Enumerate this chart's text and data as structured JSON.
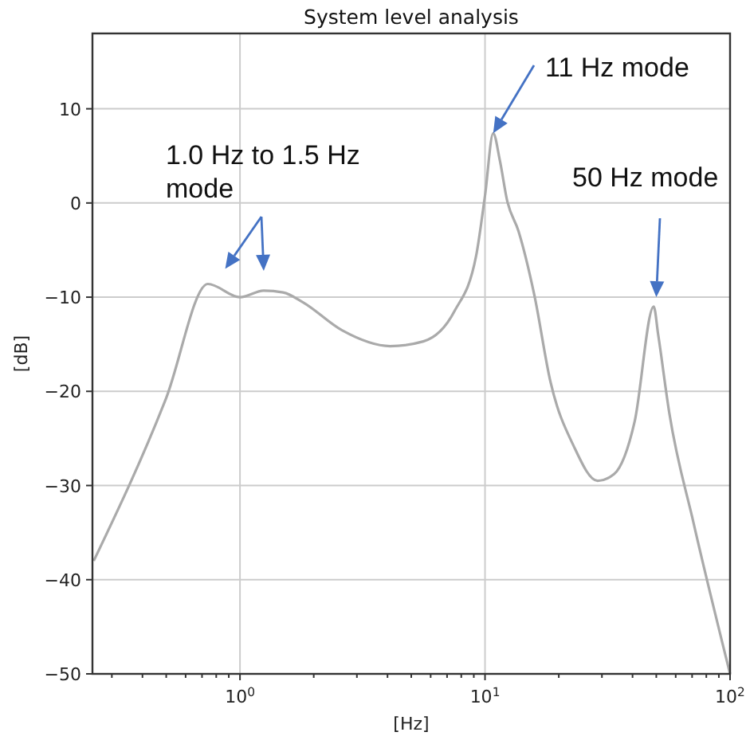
{
  "chart_data": {
    "type": "line",
    "title": "System level analysis",
    "xlabel": "[Hz]",
    "ylabel": "[dB]",
    "log": "x",
    "grid": true,
    "marker": "none",
    "line_style": "solid",
    "xlim": [
      0.25,
      100
    ],
    "ylim": [
      -50,
      18
    ],
    "xticks": [
      {
        "value": 0.3,
        "label": null
      },
      {
        "value": 0.4,
        "label": null
      },
      {
        "value": 0.5,
        "label": null
      },
      {
        "value": 0.6,
        "label": null
      },
      {
        "value": 0.7,
        "label": null
      },
      {
        "value": 0.8,
        "label": null
      },
      {
        "value": 0.9,
        "label": null
      },
      {
        "value": 1,
        "label": "10$^{0}$"
      },
      {
        "value": 2,
        "label": null
      },
      {
        "value": 3,
        "label": null
      },
      {
        "value": 4,
        "label": null
      },
      {
        "value": 5,
        "label": null
      },
      {
        "value": 6,
        "label": null
      },
      {
        "value": 7,
        "label": null
      },
      {
        "value": 8,
        "label": null
      },
      {
        "value": 9,
        "label": null
      },
      {
        "value": 10,
        "label": "10$^{1}$"
      },
      {
        "value": 20,
        "label": null
      },
      {
        "value": 30,
        "label": null
      },
      {
        "value": 40,
        "label": null
      },
      {
        "value": 50,
        "label": null
      },
      {
        "value": 60,
        "label": null
      },
      {
        "value": 70,
        "label": null
      },
      {
        "value": 80,
        "label": null
      },
      {
        "value": 90,
        "label": null
      },
      {
        "value": 100,
        "label": "10$^{2}$"
      }
    ],
    "yticks": [
      -50,
      -40,
      -30,
      -20,
      -10,
      0,
      10
    ],
    "x": [
      0.253,
      0.5,
      0.74,
      1.0,
      1.25,
      1.5,
      1.82,
      2.6,
      4.1,
      5.6,
      7.5,
      9.2,
      10,
      10.8,
      11.5,
      12.3,
      13.7,
      15.9,
      18.5,
      23,
      28.8,
      33.6,
      40.8,
      48.8,
      50.9,
      56.5,
      71,
      100
    ],
    "series": [
      {
        "color": "#aaaaaa",
        "values": [
          -38,
          -20.7,
          -8.6,
          -10,
          -9.3,
          -9.5,
          -10.6,
          -13.5,
          -15.2,
          -14.7,
          -11.5,
          -5.6,
          0.8,
          7.4,
          4.5,
          0.3,
          -3,
          -9.8,
          -19,
          -25.8,
          -29.5,
          -28.8,
          -23.2,
          -11,
          -14,
          -22.3,
          -34,
          -50
        ]
      }
    ],
    "annotations": [
      "1.0 Hz to 1.5 Hz mode",
      {
        "text": "11 Hz mode",
        "x": 10.8,
        "y": 7.4
      },
      "50 Hz mode"
    ]
  }
}
